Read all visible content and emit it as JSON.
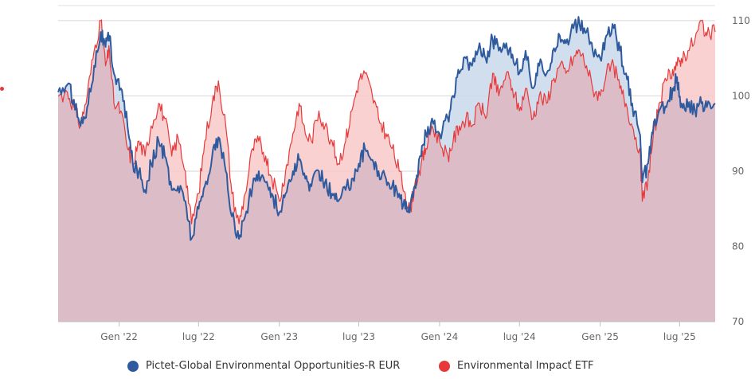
{
  "chart_data": {
    "type": "area",
    "title": "",
    "xlabel": "",
    "ylabel": "",
    "ylim": [
      70,
      112
    ],
    "yticks": [
      70,
      80,
      90,
      100,
      110
    ],
    "xlim": [
      "2021-08-15",
      "2025-09-20"
    ],
    "xticks": [
      {
        "date": "2022-01-01",
        "label": "Gen '22"
      },
      {
        "date": "2022-07-01",
        "label": "lug '22"
      },
      {
        "date": "2023-01-01",
        "label": "Gen '23"
      },
      {
        "date": "2023-07-01",
        "label": "lug '23"
      },
      {
        "date": "2024-01-01",
        "label": "Gen '24"
      },
      {
        "date": "2024-07-01",
        "label": "lug '24"
      },
      {
        "date": "2025-01-01",
        "label": "Gen '25"
      },
      {
        "date": "2025-07-01",
        "label": "lug '25"
      }
    ],
    "grid": true,
    "legend_position": "bottom",
    "series": [
      {
        "name": "Pictet-Global Environmental Opportunities-R EUR",
        "color": "#2f5b9e",
        "fill": "#c9d8ea",
        "points": [
          [
            "2021-08-15",
            100.5
          ],
          [
            "2021-09-05",
            101.5
          ],
          [
            "2021-09-20",
            99.5
          ],
          [
            "2021-10-05",
            96
          ],
          [
            "2021-10-20",
            98.5
          ],
          [
            "2021-11-05",
            104
          ],
          [
            "2021-11-20",
            108.5
          ],
          [
            "2021-12-01",
            106.5
          ],
          [
            "2021-12-10",
            108
          ],
          [
            "2021-12-20",
            103
          ],
          [
            "2022-01-05",
            101
          ],
          [
            "2022-01-20",
            96
          ],
          [
            "2022-02-01",
            91
          ],
          [
            "2022-02-15",
            90
          ],
          [
            "2022-03-01",
            87.5
          ],
          [
            "2022-03-15",
            91
          ],
          [
            "2022-04-01",
            94
          ],
          [
            "2022-04-15",
            92
          ],
          [
            "2022-05-01",
            87.5
          ],
          [
            "2022-05-15",
            88
          ],
          [
            "2022-06-01",
            86
          ],
          [
            "2022-06-15",
            81
          ],
          [
            "2022-07-01",
            85
          ],
          [
            "2022-07-15",
            88
          ],
          [
            "2022-08-01",
            92
          ],
          [
            "2022-08-15",
            94.5
          ],
          [
            "2022-09-01",
            90
          ],
          [
            "2022-09-15",
            84
          ],
          [
            "2022-10-01",
            81
          ],
          [
            "2022-10-15",
            84
          ],
          [
            "2022-11-01",
            88
          ],
          [
            "2022-11-15",
            90
          ],
          [
            "2022-12-01",
            88.5
          ],
          [
            "2022-12-15",
            87
          ],
          [
            "2023-01-01",
            84.5
          ],
          [
            "2023-01-15",
            87
          ],
          [
            "2023-02-01",
            90
          ],
          [
            "2023-02-15",
            91.5
          ],
          [
            "2023-03-01",
            89
          ],
          [
            "2023-03-15",
            88
          ],
          [
            "2023-04-01",
            90
          ],
          [
            "2023-04-15",
            88.5
          ],
          [
            "2023-05-01",
            87
          ],
          [
            "2023-05-15",
            86
          ],
          [
            "2023-06-01",
            87.5
          ],
          [
            "2023-06-15",
            89
          ],
          [
            "2023-07-01",
            91
          ],
          [
            "2023-07-15",
            93
          ],
          [
            "2023-08-01",
            91.5
          ],
          [
            "2023-08-15",
            90
          ],
          [
            "2023-09-01",
            89
          ],
          [
            "2023-09-15",
            88
          ],
          [
            "2023-10-01",
            87
          ],
          [
            "2023-10-15",
            85
          ],
          [
            "2023-10-25",
            84.5
          ],
          [
            "2023-11-05",
            88
          ],
          [
            "2023-11-20",
            92
          ],
          [
            "2023-12-01",
            95
          ],
          [
            "2023-12-15",
            97
          ],
          [
            "2024-01-01",
            95
          ],
          [
            "2024-01-20",
            97
          ],
          [
            "2024-02-01",
            100
          ],
          [
            "2024-02-15",
            103
          ],
          [
            "2024-03-01",
            105
          ],
          [
            "2024-03-15",
            104
          ],
          [
            "2024-04-01",
            107
          ],
          [
            "2024-04-15",
            105
          ],
          [
            "2024-05-01",
            107.5
          ],
          [
            "2024-05-15",
            106
          ],
          [
            "2024-06-01",
            107
          ],
          [
            "2024-06-15",
            105.5
          ],
          [
            "2024-07-01",
            103
          ],
          [
            "2024-07-15",
            106
          ],
          [
            "2024-08-01",
            101
          ],
          [
            "2024-08-15",
            104
          ],
          [
            "2024-09-01",
            103
          ],
          [
            "2024-09-15",
            106
          ],
          [
            "2024-10-01",
            108
          ],
          [
            "2024-10-15",
            107
          ],
          [
            "2024-11-01",
            109
          ],
          [
            "2024-11-15",
            109.5
          ],
          [
            "2024-12-01",
            108.5
          ],
          [
            "2024-12-15",
            106
          ],
          [
            "2025-01-01",
            105
          ],
          [
            "2025-01-15",
            108
          ],
          [
            "2025-02-01",
            109
          ],
          [
            "2025-02-15",
            106
          ],
          [
            "2025-03-01",
            103
          ],
          [
            "2025-03-15",
            99
          ],
          [
            "2025-04-01",
            95
          ],
          [
            "2025-04-07",
            88.5
          ],
          [
            "2025-04-20",
            91
          ],
          [
            "2025-05-01",
            95
          ],
          [
            "2025-05-15",
            98
          ],
          [
            "2025-06-01",
            98.5
          ],
          [
            "2025-06-15",
            101
          ],
          [
            "2025-06-25",
            102.5
          ],
          [
            "2025-07-05",
            99
          ],
          [
            "2025-07-20",
            98.5
          ],
          [
            "2025-08-05",
            98
          ],
          [
            "2025-08-20",
            99
          ],
          [
            "2025-09-01",
            98.5
          ],
          [
            "2025-09-20",
            99
          ]
        ]
      },
      {
        "name": "Environmental Impact ETF",
        "color": "#e8393a",
        "fill": "#f7c9c8",
        "points": [
          [
            "2021-08-15",
            100
          ],
          [
            "2021-09-05",
            100.5
          ],
          [
            "2021-09-20",
            98.5
          ],
          [
            "2021-10-05",
            96
          ],
          [
            "2021-10-20",
            100
          ],
          [
            "2021-11-05",
            106
          ],
          [
            "2021-11-20",
            110
          ],
          [
            "2021-12-01",
            104
          ],
          [
            "2021-12-10",
            106
          ],
          [
            "2021-12-20",
            99
          ],
          [
            "2022-01-05",
            98
          ],
          [
            "2022-01-20",
            93
          ],
          [
            "2022-02-01",
            91
          ],
          [
            "2022-02-15",
            94
          ],
          [
            "2022-03-01",
            92
          ],
          [
            "2022-03-15",
            96
          ],
          [
            "2022-04-01",
            99
          ],
          [
            "2022-04-15",
            97
          ],
          [
            "2022-05-01",
            92
          ],
          [
            "2022-05-15",
            94.5
          ],
          [
            "2022-06-01",
            90
          ],
          [
            "2022-06-15",
            83
          ],
          [
            "2022-07-01",
            87
          ],
          [
            "2022-07-15",
            94
          ],
          [
            "2022-08-01",
            99
          ],
          [
            "2022-08-15",
            102
          ],
          [
            "2022-09-01",
            96
          ],
          [
            "2022-09-15",
            87
          ],
          [
            "2022-10-01",
            83
          ],
          [
            "2022-10-15",
            87
          ],
          [
            "2022-11-01",
            93
          ],
          [
            "2022-11-15",
            94
          ],
          [
            "2022-12-01",
            92
          ],
          [
            "2022-12-15",
            89
          ],
          [
            "2023-01-01",
            86
          ],
          [
            "2023-01-15",
            90
          ],
          [
            "2023-02-01",
            95
          ],
          [
            "2023-02-15",
            99
          ],
          [
            "2023-03-01",
            95
          ],
          [
            "2023-03-15",
            94
          ],
          [
            "2023-04-01",
            98
          ],
          [
            "2023-04-15",
            96
          ],
          [
            "2023-05-01",
            94
          ],
          [
            "2023-05-15",
            91
          ],
          [
            "2023-06-01",
            94
          ],
          [
            "2023-06-15",
            98
          ],
          [
            "2023-07-01",
            102
          ],
          [
            "2023-07-15",
            103
          ],
          [
            "2023-08-01",
            100
          ],
          [
            "2023-08-15",
            97
          ],
          [
            "2023-09-01",
            95
          ],
          [
            "2023-09-15",
            93
          ],
          [
            "2023-10-01",
            90
          ],
          [
            "2023-10-15",
            87
          ],
          [
            "2023-10-25",
            84.5
          ],
          [
            "2023-11-05",
            88
          ],
          [
            "2023-11-20",
            91
          ],
          [
            "2023-12-01",
            93
          ],
          [
            "2023-12-15",
            96
          ],
          [
            "2024-01-01",
            94
          ],
          [
            "2024-01-20",
            92
          ],
          [
            "2024-02-01",
            94
          ],
          [
            "2024-02-15",
            96
          ],
          [
            "2024-03-01",
            97
          ],
          [
            "2024-03-15",
            96
          ],
          [
            "2024-04-01",
            99
          ],
          [
            "2024-04-15",
            97
          ],
          [
            "2024-05-01",
            103
          ],
          [
            "2024-05-15",
            100
          ],
          [
            "2024-06-01",
            103
          ],
          [
            "2024-06-15",
            101
          ],
          [
            "2024-07-01",
            98
          ],
          [
            "2024-07-15",
            101
          ],
          [
            "2024-08-01",
            97
          ],
          [
            "2024-08-15",
            100
          ],
          [
            "2024-09-01",
            99
          ],
          [
            "2024-09-15",
            102
          ],
          [
            "2024-10-01",
            104
          ],
          [
            "2024-10-15",
            103
          ],
          [
            "2024-11-01",
            105
          ],
          [
            "2024-11-15",
            106
          ],
          [
            "2024-12-01",
            104
          ],
          [
            "2024-12-15",
            101
          ],
          [
            "2025-01-01",
            100
          ],
          [
            "2025-01-15",
            103
          ],
          [
            "2025-02-01",
            104
          ],
          [
            "2025-02-15",
            101
          ],
          [
            "2025-03-01",
            99
          ],
          [
            "2025-03-15",
            96
          ],
          [
            "2025-04-01",
            93
          ],
          [
            "2025-04-07",
            86
          ],
          [
            "2025-04-20",
            89
          ],
          [
            "2025-05-01",
            94
          ],
          [
            "2025-05-15",
            99
          ],
          [
            "2025-06-01",
            102
          ],
          [
            "2025-06-15",
            103.5
          ],
          [
            "2025-06-25",
            104
          ],
          [
            "2025-07-05",
            105
          ],
          [
            "2025-07-20",
            106
          ],
          [
            "2025-08-05",
            107.5
          ],
          [
            "2025-08-20",
            110
          ],
          [
            "2025-09-01",
            108
          ],
          [
            "2025-09-20",
            108.5
          ]
        ]
      }
    ],
    "overlap_fill": "#dcbcc7"
  },
  "legend": {
    "items": [
      {
        "label": "Pictet-Global Environmental Opportunities-R EUR",
        "color": "#2f5b9e"
      },
      {
        "label": "Environmental Impacť ETF",
        "color": "#e8393a"
      }
    ]
  },
  "stray_marker_color": "#e8393a"
}
